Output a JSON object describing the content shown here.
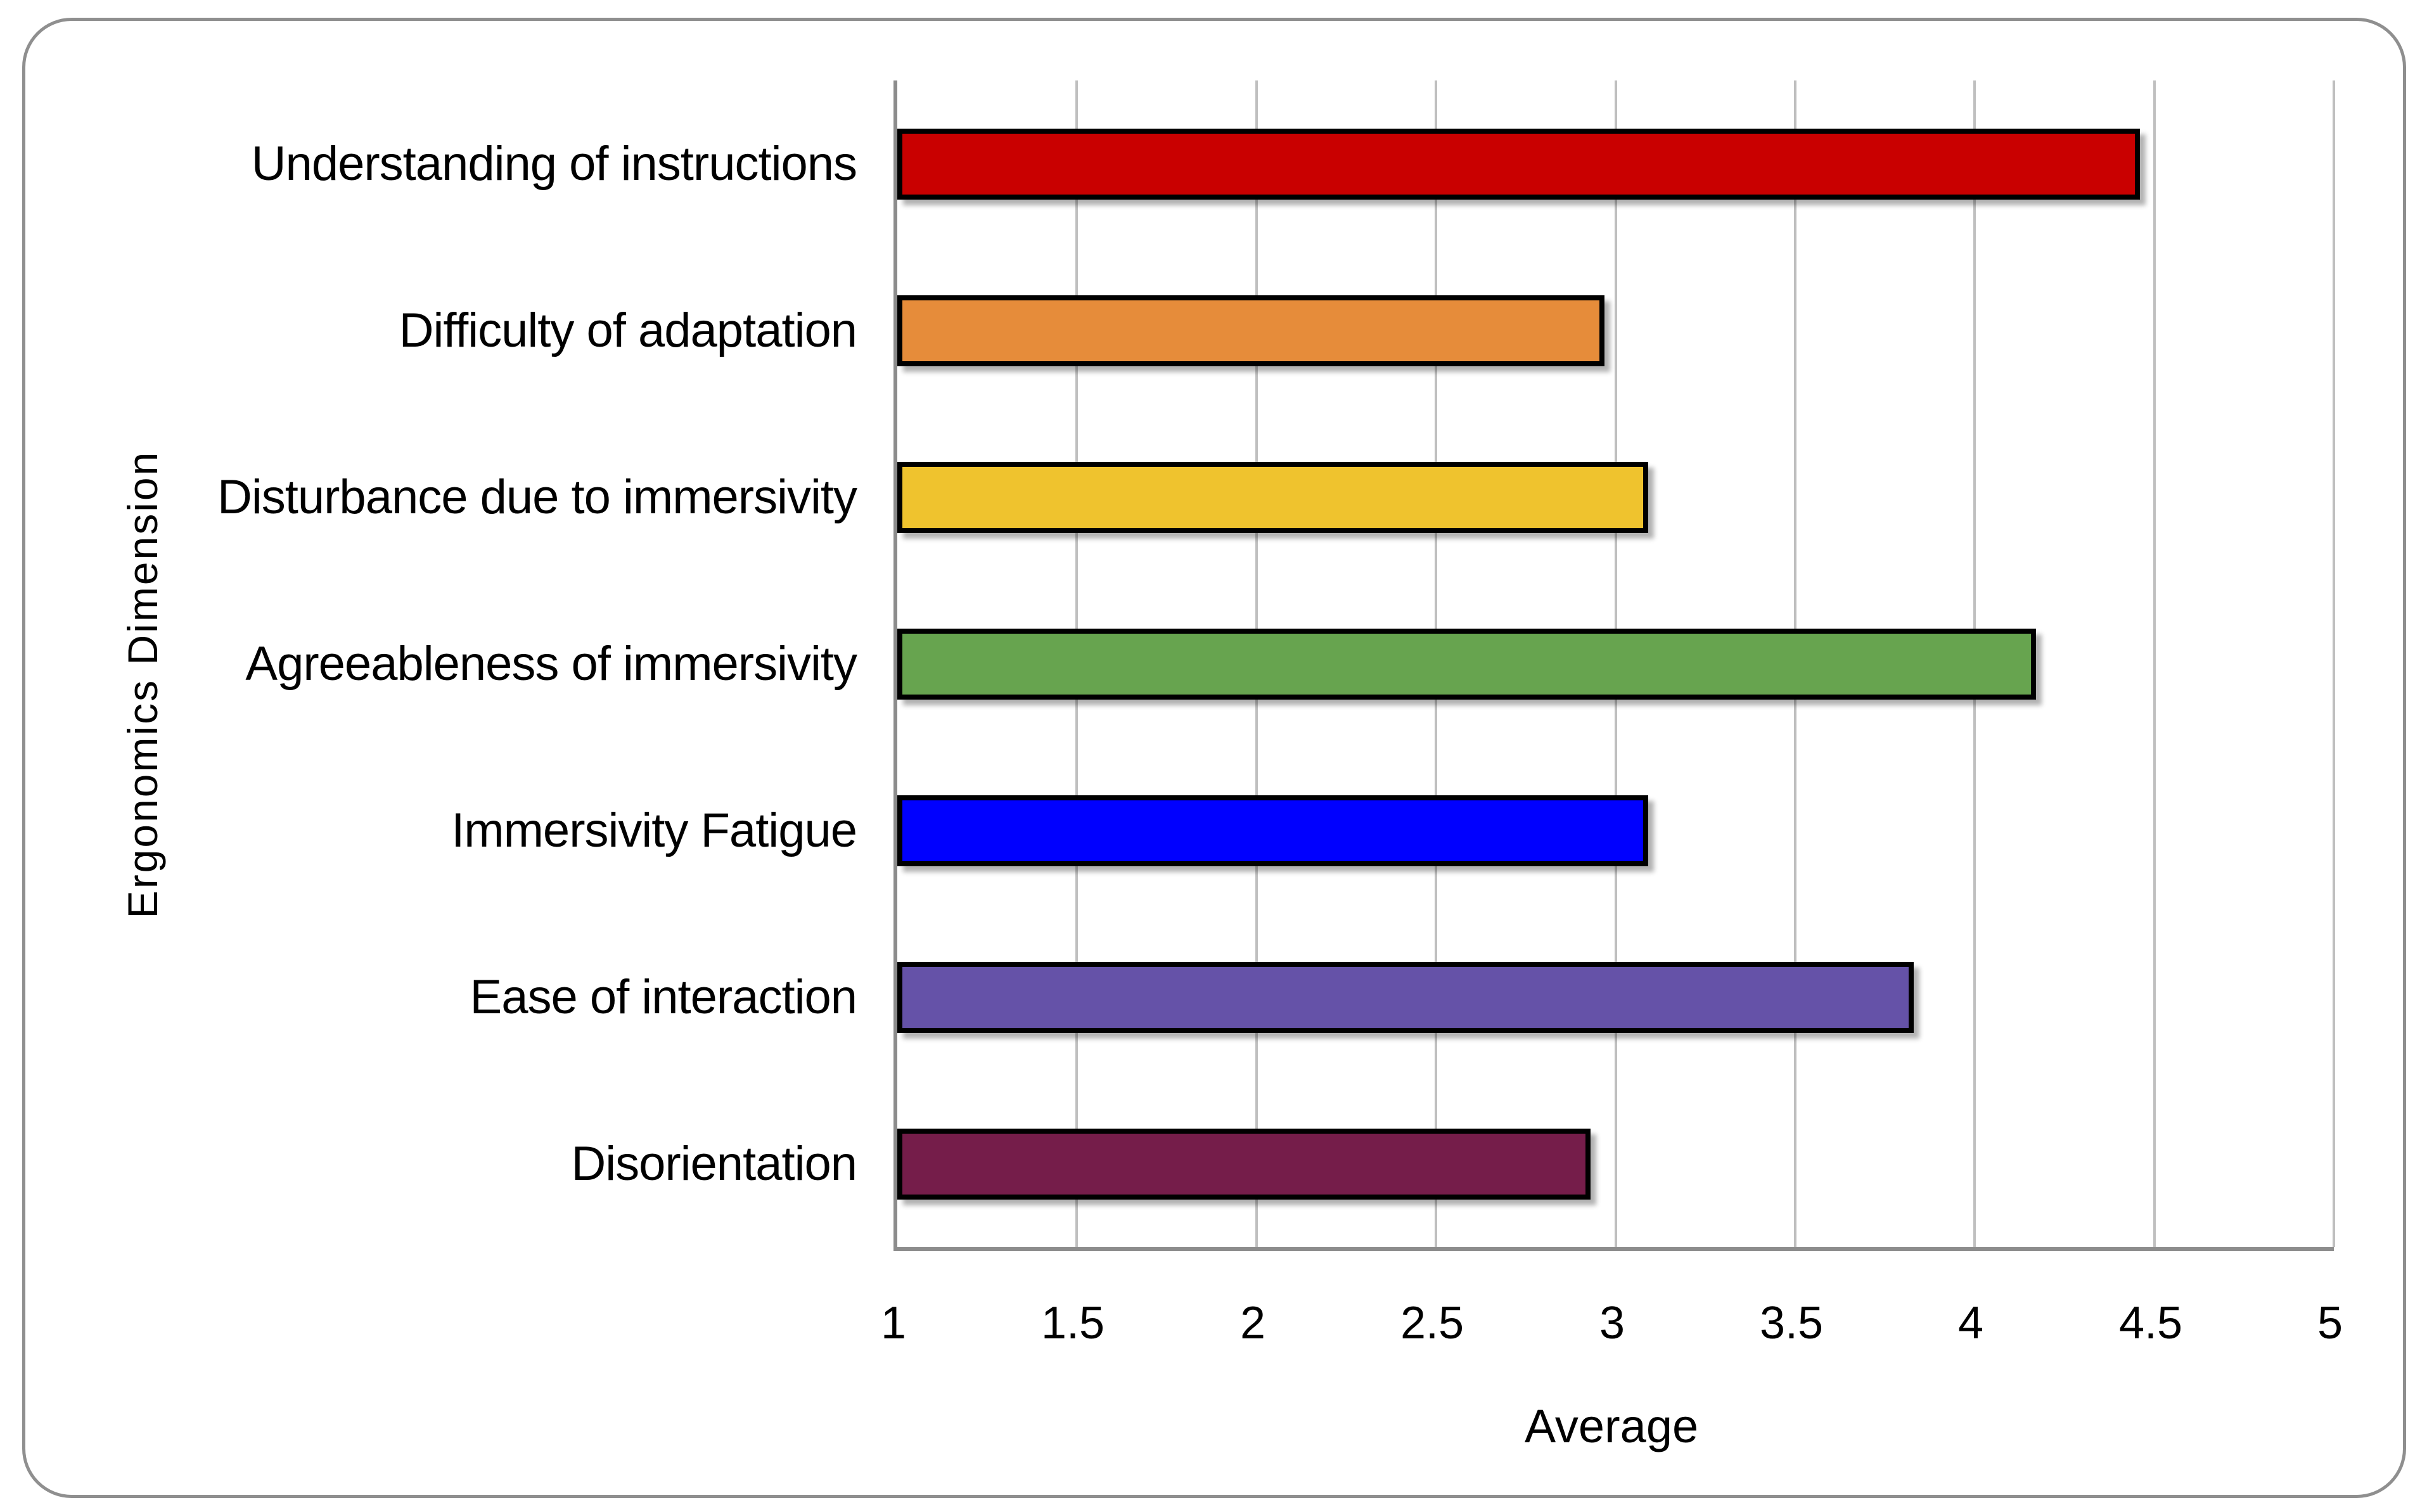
{
  "chart_data": {
    "type": "bar",
    "orientation": "horizontal",
    "xlabel": "Average",
    "ylabel": "Ergonomics Dimension",
    "xlim": [
      1,
      5
    ],
    "x_tick_labels": [
      "1",
      "1.5",
      "2",
      "2.5",
      "3",
      "3.5",
      "4",
      "4.5",
      "5"
    ],
    "grid": true,
    "legend": "none",
    "categories": [
      "Understanding of instructions",
      "Difficulty of adaptation",
      "Disturbance due to immersivity",
      "Agreeableness of immersivity",
      "Immersivity Fatigue",
      "Ease of interaction",
      "Disorientation"
    ],
    "values": [
      4.46,
      2.97,
      3.09,
      4.17,
      3.09,
      3.83,
      2.93
    ],
    "bar_colors": [
      "#c90000",
      "#e68c3a",
      "#efc32e",
      "#67a44f",
      "#0000ff",
      "#6552a8",
      "#751d4a"
    ],
    "bar_border_color": "#000000",
    "gridline_color": "#bfbfbf",
    "axis_line_color": "#8c8c8c",
    "frame_border_color": "#8f8f8f",
    "background_color": "#ffffff"
  }
}
